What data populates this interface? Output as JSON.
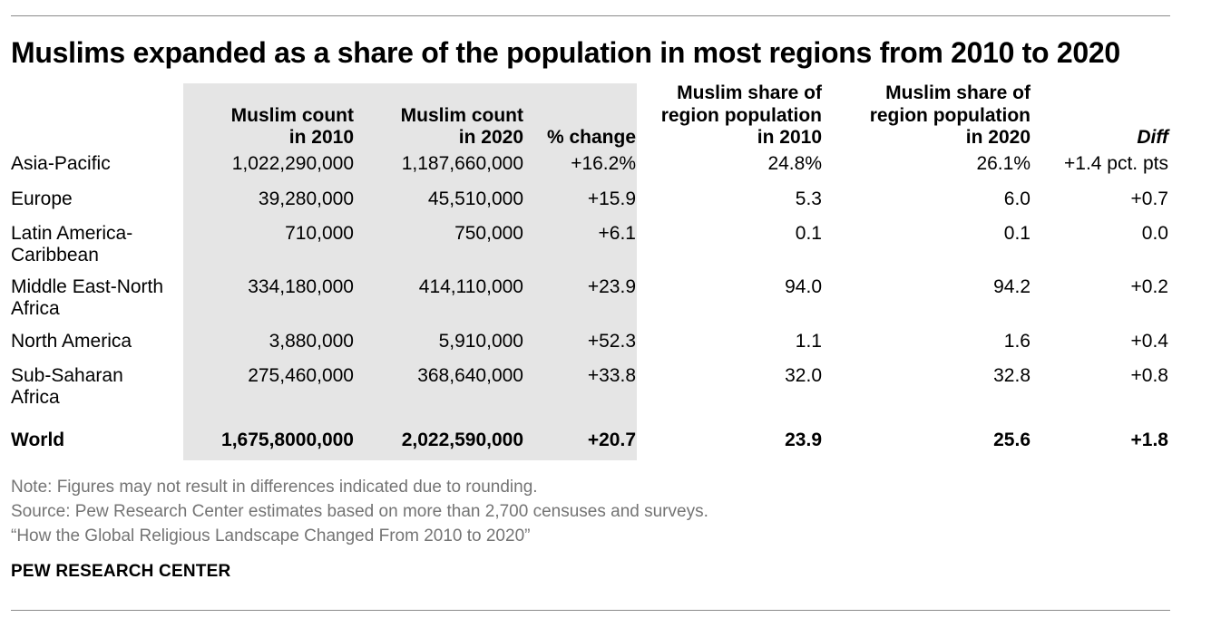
{
  "chart_data": {
    "type": "table",
    "title": "Muslims expanded as a share of the population in most regions from 2010 to 2020",
    "columns": [
      "Muslim count in 2010",
      "Muslim count in 2020",
      "% change",
      "Muslim share of region population in 2010",
      "Muslim share of region population in 2020",
      "Diff"
    ],
    "headers": [
      {
        "line1": "",
        "line2": "Muslim count",
        "line3": "in 2010"
      },
      {
        "line1": "",
        "line2": "Muslim count",
        "line3": "in 2020"
      },
      {
        "line1": "",
        "line2": "",
        "line3": "% change"
      },
      {
        "line1": "Muslim share of",
        "line2": "region population",
        "line3": "in 2010"
      },
      {
        "line1": "Muslim share of",
        "line2": "region population",
        "line3": "in 2020"
      },
      {
        "line1": "",
        "line2": "",
        "line3": "Diff"
      }
    ],
    "rows": [
      {
        "region_line1": "Asia-Pacific",
        "region_line2": "",
        "values": [
          "1,022,290,000",
          "1,187,660,000",
          "+16.2%",
          "24.8%",
          "26.1%",
          "+1.4 pct. pts"
        ]
      },
      {
        "region_line1": "Europe",
        "region_line2": "",
        "values": [
          "39,280,000",
          "45,510,000",
          "+15.9",
          "5.3",
          "6.0",
          "+0.7"
        ]
      },
      {
        "region_line1": "Latin America-",
        "region_line2": "Caribbean",
        "values": [
          "710,000",
          "750,000",
          "+6.1",
          "0.1",
          "0.1",
          "0.0"
        ]
      },
      {
        "region_line1": "Middle East-North",
        "region_line2": "Africa",
        "values": [
          "334,180,000",
          "414,110,000",
          "+23.9",
          "94.0",
          "94.2",
          "+0.2"
        ]
      },
      {
        "region_line1": "North America",
        "region_line2": "",
        "values": [
          "3,880,000",
          "5,910,000",
          "+52.3",
          "1.1",
          "1.6",
          "+0.4"
        ]
      },
      {
        "region_line1": "Sub-Saharan",
        "region_line2": "Africa",
        "values": [
          "275,460,000",
          "368,640,000",
          "+33.8",
          "32.0",
          "32.8",
          "+0.8"
        ]
      },
      {
        "region_line1": "World",
        "region_line2": "",
        "values": [
          "1,675,8000,000",
          "2,022,590,000",
          "+20.7",
          "23.9",
          "25.6",
          "+1.8"
        ]
      }
    ]
  },
  "footer": {
    "note": "Note: Figures may not result in differences indicated due to rounding.",
    "source": "Source: Pew Research Center estimates based on more than 2,700 censuses and surveys.",
    "report": "“How the Global Religious Landscape Changed From 2010 to 2020”",
    "brand": "PEW RESEARCH CENTER"
  }
}
